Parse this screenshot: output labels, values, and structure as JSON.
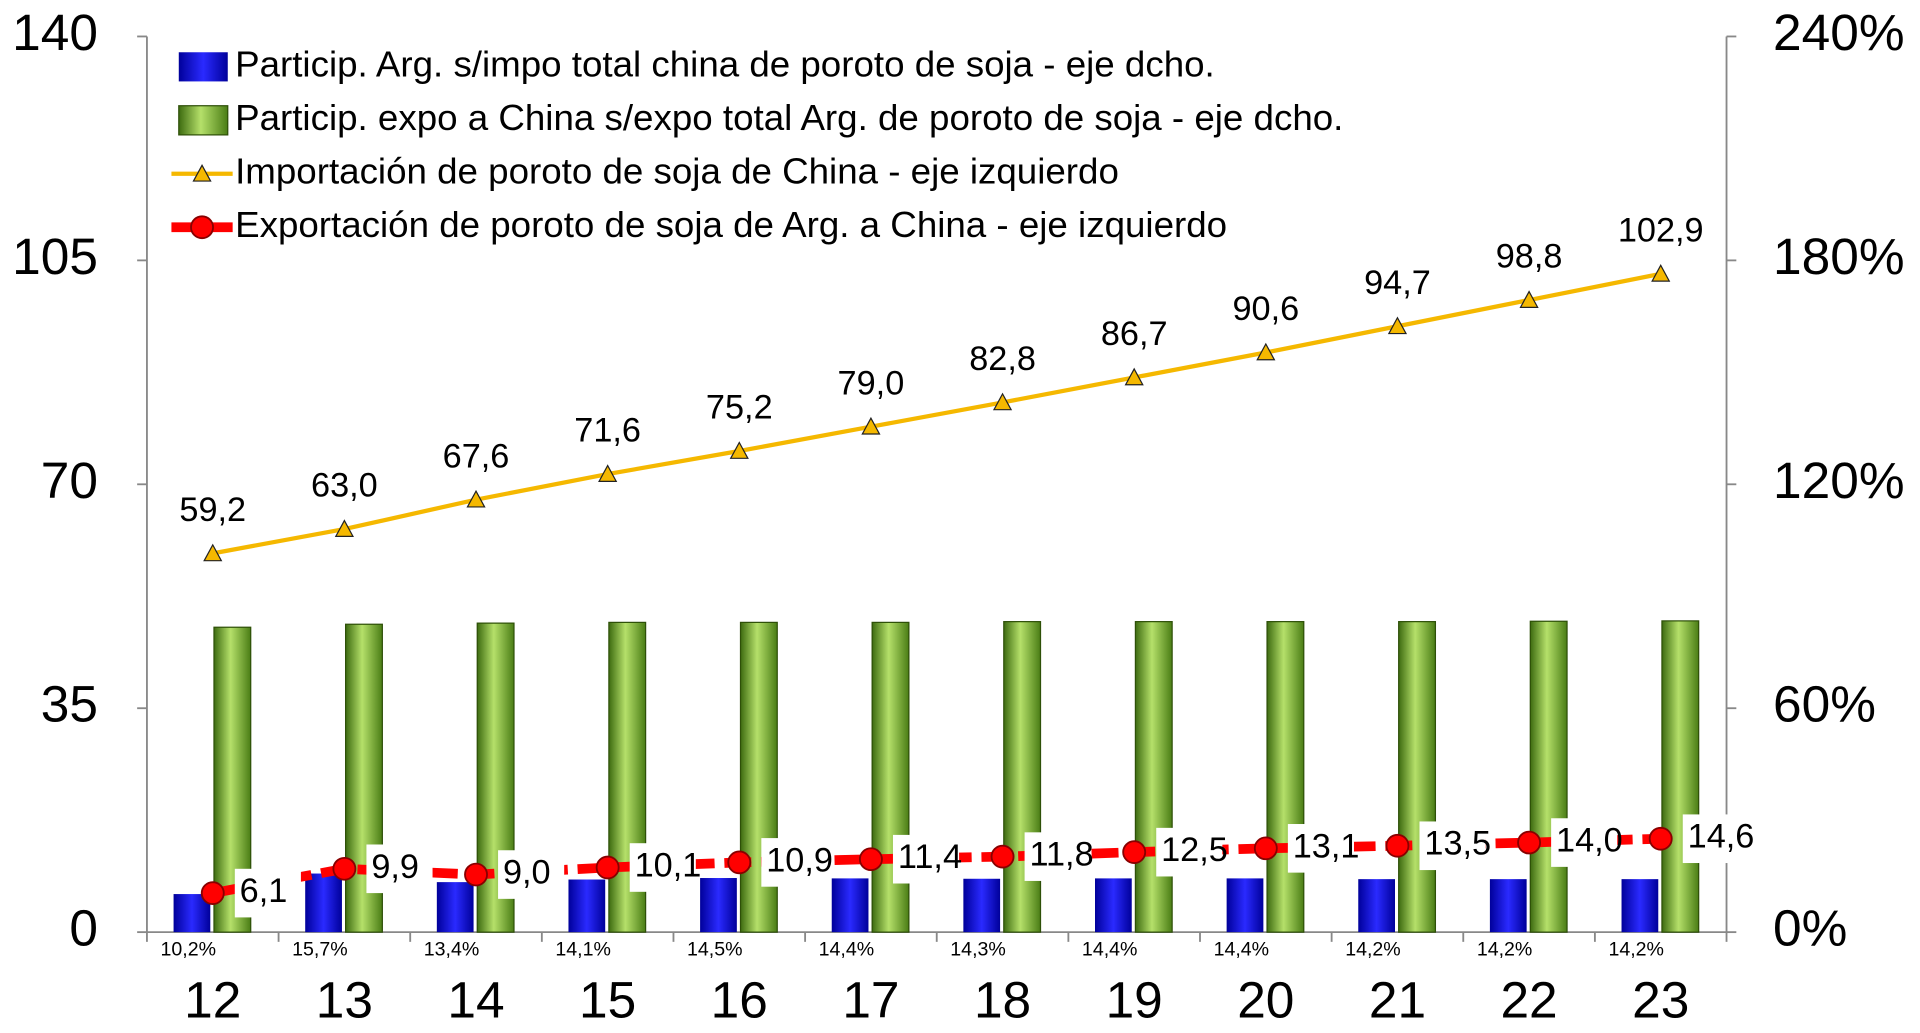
{
  "chart_data": {
    "type": "bar-line",
    "categories": [
      "12",
      "13",
      "14",
      "15",
      "16",
      "17",
      "18",
      "19",
      "20",
      "21",
      "22",
      "23"
    ],
    "ylim": [
      0,
      140
    ],
    "yticks": [
      0,
      35,
      70,
      105,
      140
    ],
    "y2lim": [
      0,
      240
    ],
    "y2ticks": [
      {
        "value": 0,
        "label": "0%"
      },
      {
        "value": 60,
        "label": "60%"
      },
      {
        "value": 120,
        "label": "120%"
      },
      {
        "value": 180,
        "label": "180%"
      },
      {
        "value": 240,
        "label": "240%"
      }
    ],
    "legend": "top-left",
    "series": [
      {
        "name": "Particip. Arg. s/impo total china de poroto de soja - eje dcho.",
        "type": "bar",
        "axis": "y2",
        "color": "#0a0ad8",
        "values": [
          10.2,
          15.7,
          13.4,
          14.1,
          14.5,
          14.4,
          14.3,
          14.4,
          14.4,
          14.2,
          14.2,
          14.2
        ],
        "value_labels": [
          "10,2%",
          "15,7%",
          "13,4%",
          "14,1%",
          "14,5%",
          "14,4%",
          "14,3%",
          "14,4%",
          "14,4%",
          "14,2%",
          "14,2%",
          "14,2%"
        ]
      },
      {
        "name": "Particip. expo a China s/expo total Arg. de poroto de soja - eje dcho.",
        "type": "bar",
        "axis": "y2",
        "color": "#7aad35",
        "values": [
          81.7,
          82.5,
          82.8,
          83.0,
          83.0,
          83.0,
          83.2,
          83.2,
          83.2,
          83.2,
          83.3,
          83.4
        ]
      },
      {
        "name": "Importación de poroto de soja de China - eje izquierdo",
        "type": "line",
        "color": "#f5b800",
        "values": [
          59.2,
          63.0,
          67.6,
          71.6,
          75.2,
          79.0,
          82.8,
          86.7,
          90.6,
          94.7,
          98.8,
          102.9
        ],
        "value_labels": [
          "59,2",
          "63,0",
          "67,6",
          "71,6",
          "75,2",
          "79,0",
          "82,8",
          "86,7",
          "90,6",
          "94,7",
          "98,8",
          "102,9"
        ]
      },
      {
        "name": "Exportación de poroto de soja de Arg. a China - eje izquierdo",
        "type": "line",
        "color": "#ff0000",
        "values": [
          6.1,
          9.9,
          9.0,
          10.1,
          10.9,
          11.4,
          11.8,
          12.5,
          13.1,
          13.5,
          14.0,
          14.6
        ],
        "value_labels": [
          "6,1",
          "9,9",
          "9,0",
          "10,1",
          "10,9",
          "11,4",
          "11,8",
          "12,5",
          "13,1",
          "13,5",
          "14,0",
          "14,6"
        ]
      }
    ]
  }
}
